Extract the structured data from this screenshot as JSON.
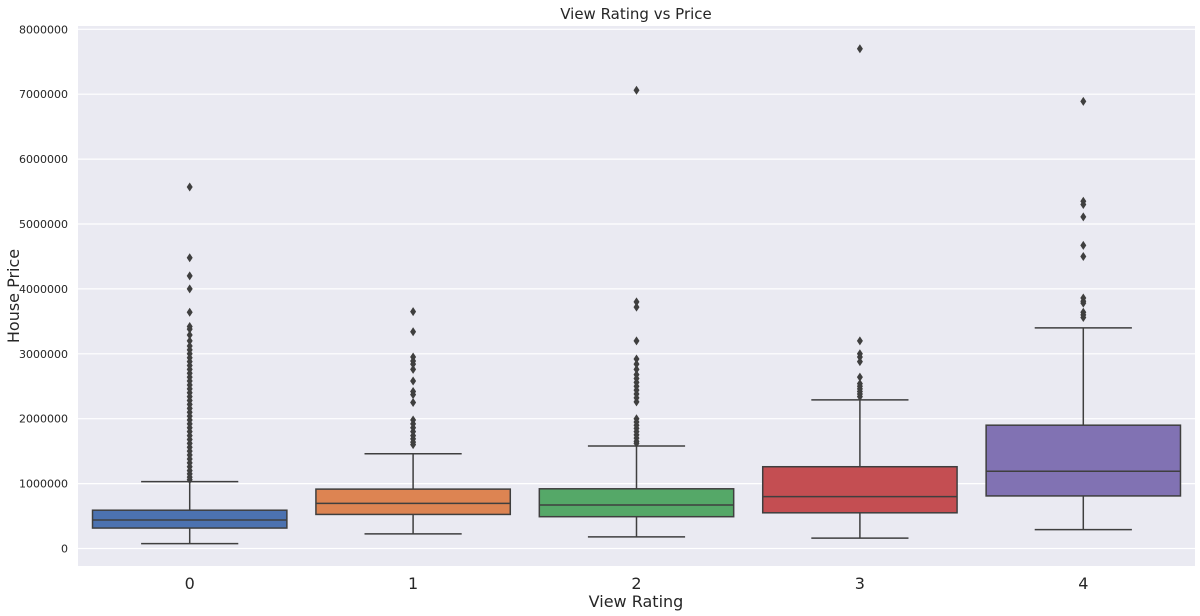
{
  "chart_data": {
    "type": "box",
    "title": "View Rating vs Price",
    "xlabel": "View Rating",
    "ylabel": "House Price",
    "ylim": [
      -300000,
      8100000
    ],
    "yticks": [
      0,
      1000000,
      2000000,
      3000000,
      4000000,
      5000000,
      6000000,
      7000000,
      8000000
    ],
    "ytick_labels": [
      "0",
      "1000000",
      "2000000",
      "3000000",
      "4000000",
      "5000000",
      "6000000",
      "7000000",
      "8000000"
    ],
    "grid": true,
    "categories": [
      "0",
      "1",
      "2",
      "3",
      "4"
    ],
    "colors": [
      "#4c72b0",
      "#dd8452",
      "#55a868",
      "#c44e52",
      "#8172b3"
    ],
    "boxes": [
      {
        "category": "0",
        "whisker_low": 75000,
        "q1": 315000,
        "median": 440000,
        "q3": 590000,
        "whisker_high": 1030000,
        "outliers": [
          5570000,
          4480000,
          4200000,
          4000000,
          3640000,
          3420000,
          3380000,
          3290000,
          3200000,
          3120000,
          3060000,
          3000000,
          2940000,
          2880000,
          2820000,
          2760000,
          2700000,
          2640000,
          2580000,
          2520000,
          2460000,
          2400000,
          2340000,
          2280000,
          2220000,
          2160000,
          2100000,
          2040000,
          1980000,
          1920000,
          1860000,
          1800000,
          1740000,
          1680000,
          1620000,
          1560000,
          1500000,
          1440000,
          1380000,
          1320000,
          1260000,
          1200000,
          1150000,
          1100000,
          1060000
        ]
      },
      {
        "category": "1",
        "whisker_low": 225000,
        "q1": 525000,
        "median": 695000,
        "q3": 915000,
        "whisker_high": 1460000,
        "outliers": [
          3650000,
          3340000,
          2950000,
          2890000,
          2840000,
          2760000,
          2580000,
          2420000,
          2370000,
          2250000,
          1980000,
          1920000,
          1860000,
          1800000,
          1740000,
          1690000,
          1640000,
          1600000
        ]
      },
      {
        "category": "2",
        "whisker_low": 180000,
        "q1": 490000,
        "median": 670000,
        "q3": 920000,
        "whisker_high": 1580000,
        "outliers": [
          7060000,
          3800000,
          3720000,
          3200000,
          2920000,
          2840000,
          2760000,
          2680000,
          2620000,
          2560000,
          2500000,
          2440000,
          2380000,
          2320000,
          2260000,
          2000000,
          1950000,
          1900000,
          1850000,
          1800000,
          1750000,
          1700000,
          1650000,
          1620000
        ]
      },
      {
        "category": "3",
        "whisker_low": 160000,
        "q1": 550000,
        "median": 800000,
        "q3": 1260000,
        "whisker_high": 2290000,
        "outliers": [
          7700000,
          3200000,
          3000000,
          2950000,
          2880000,
          2640000,
          2540000,
          2500000,
          2460000,
          2420000,
          2380000,
          2340000
        ]
      },
      {
        "category": "4",
        "whisker_low": 290000,
        "q1": 810000,
        "median": 1190000,
        "q3": 1900000,
        "whisker_high": 3400000,
        "outliers": [
          6890000,
          5350000,
          5300000,
          5110000,
          4670000,
          4500000,
          3860000,
          3810000,
          3780000,
          3640000,
          3600000,
          3560000
        ]
      }
    ]
  }
}
